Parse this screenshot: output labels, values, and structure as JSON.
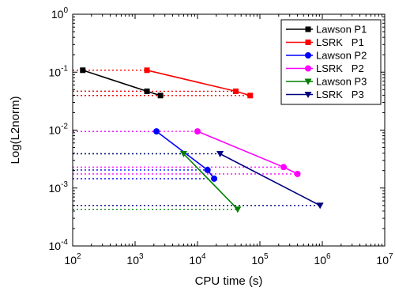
{
  "chart_data": {
    "type": "line",
    "xscale": "log",
    "yscale": "log",
    "xlim": [
      100,
      10000000
    ],
    "ylim": [
      0.0001,
      1
    ],
    "xlabel": "CPU time (s)",
    "ylabel": "Log(L2norm)",
    "legend_position": "top-right",
    "x_ticks": [
      100,
      1000,
      10000,
      100000,
      1000000,
      10000000
    ],
    "y_ticks": [
      0.0001,
      0.001,
      0.01,
      0.1,
      1
    ],
    "x_tick_labels": [
      {
        "base": "10",
        "exp": "2"
      },
      {
        "base": "10",
        "exp": "3"
      },
      {
        "base": "10",
        "exp": "4"
      },
      {
        "base": "10",
        "exp": "5"
      },
      {
        "base": "10",
        "exp": "6"
      },
      {
        "base": "10",
        "exp": "7"
      }
    ],
    "y_tick_labels": [
      {
        "base": "10",
        "exp": "-4"
      },
      {
        "base": "10",
        "exp": "-3"
      },
      {
        "base": "10",
        "exp": "-2"
      },
      {
        "base": "10",
        "exp": "-1"
      },
      {
        "base": "10",
        "exp": "0"
      }
    ],
    "series": [
      {
        "name": "Lawson P1",
        "color": "#000000",
        "marker": "square",
        "x": [
          145,
          1550,
          2550
        ],
        "y": [
          0.108,
          0.0468,
          0.0395
        ],
        "ref_lines": [
          0.108,
          0.0468,
          0.0395
        ]
      },
      {
        "name": "LSRK   P1",
        "color": "#ff0000",
        "marker": "square",
        "x": [
          1550,
          41000,
          70000
        ],
        "y": [
          0.108,
          0.0468,
          0.0395
        ],
        "ref_lines": [
          0.108,
          0.0468,
          0.0395
        ]
      },
      {
        "name": "Lawson P2",
        "color": "#0000ff",
        "marker": "circle",
        "x": [
          2200,
          14500,
          18500
        ],
        "y": [
          0.0095,
          0.00205,
          0.00145
        ],
        "ref_lines": [
          0.0095,
          0.00205,
          0.00145
        ]
      },
      {
        "name": "LSRK   P2",
        "color": "#ff00ff",
        "marker": "circle",
        "x": [
          10000,
          240000,
          400000
        ],
        "y": [
          0.0095,
          0.0023,
          0.00175
        ],
        "ref_lines": [
          0.0095,
          0.0023,
          0.00175
        ]
      },
      {
        "name": "Lawson P3",
        "color": "#008000",
        "marker": "triangle-down",
        "x": [
          6000,
          44000
        ],
        "y": [
          0.0039,
          0.00043
        ],
        "ref_lines": [
          0.0039,
          0.00043
        ]
      },
      {
        "name": "LSRK   P3",
        "color": "#000080",
        "marker": "triangle-down",
        "x": [
          23000,
          920000
        ],
        "y": [
          0.0039,
          0.0005
        ],
        "ref_lines": [
          0.0039,
          0.0005
        ]
      }
    ]
  }
}
